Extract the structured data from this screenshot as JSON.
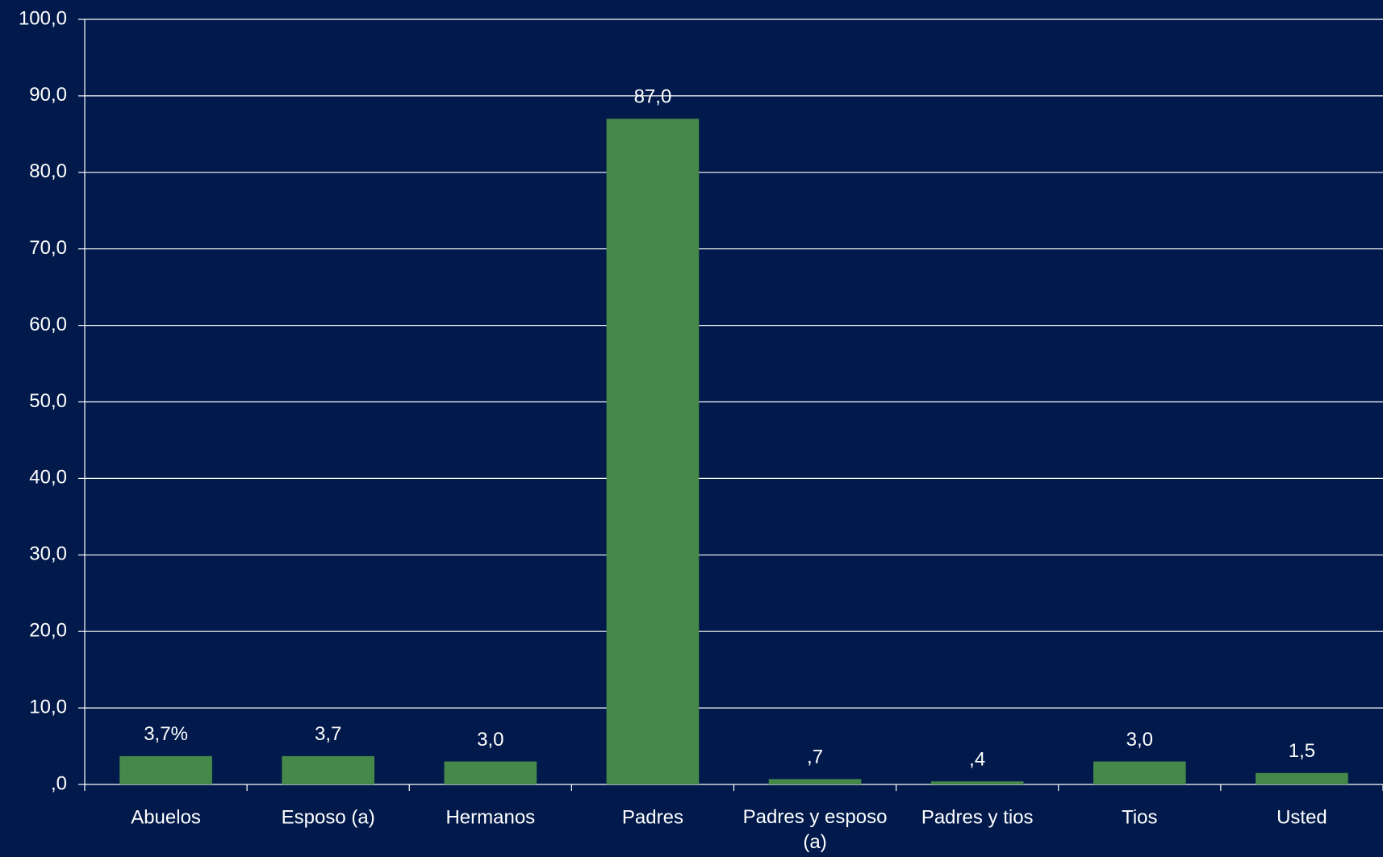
{
  "chart_data": {
    "type": "bar",
    "categories": [
      "Abuelos",
      "Esposo (a)",
      "Hermanos",
      "Padres",
      "Padres y esposo (a)",
      "Padres y tios",
      "Tios",
      "Usted"
    ],
    "values": [
      3.7,
      3.7,
      3.0,
      87.0,
      0.7,
      0.4,
      3.0,
      1.5
    ],
    "value_labels": [
      "3,7%",
      "3,7",
      "3,0",
      "87,0",
      ",7",
      ",4",
      "3,0",
      "1,5"
    ],
    "color": "#46884a",
    "ylim": [
      0,
      100
    ],
    "yticks": [
      {
        "value": 0,
        "label": ",0"
      },
      {
        "value": 10,
        "label": "10,0"
      },
      {
        "value": 20,
        "label": "20,0"
      },
      {
        "value": 30,
        "label": "30,0"
      },
      {
        "value": 40,
        "label": "40,0"
      },
      {
        "value": 50,
        "label": "50,0"
      },
      {
        "value": 60,
        "label": "60,0"
      },
      {
        "value": 70,
        "label": "70,0"
      },
      {
        "value": 80,
        "label": "80,0"
      },
      {
        "value": 90,
        "label": "90,0"
      },
      {
        "value": 100,
        "label": "100,0"
      }
    ],
    "grid": true
  }
}
